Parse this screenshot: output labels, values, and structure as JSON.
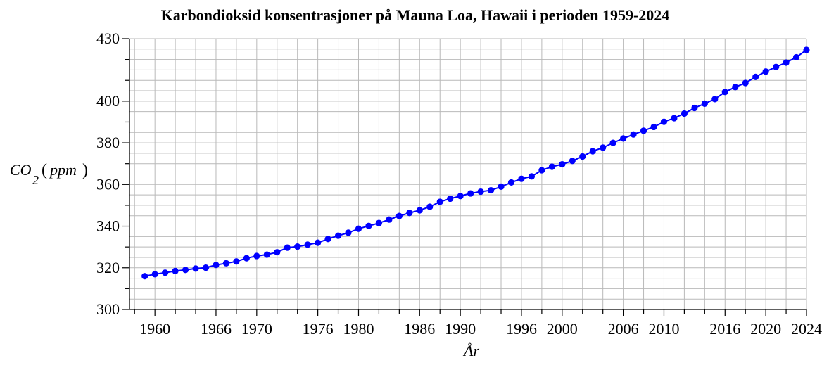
{
  "chart_data": {
    "type": "line",
    "title": "Karbondioksid konsentrasjoner på Mauna Loa, Hawaii i perioden 1959-2024",
    "ylabel": {
      "main": "CO",
      "subscript": "2",
      "paren_open": "(",
      "unit": "ppm",
      "paren_close": ")"
    },
    "xlabel": "År",
    "xlim": [
      1957.5,
      2024
    ],
    "ylim": [
      300,
      430
    ],
    "x_ticks": [
      1960,
      1966,
      1970,
      1976,
      1980,
      1986,
      1990,
      1996,
      2000,
      2006,
      2010,
      2016,
      2020,
      2024
    ],
    "x_tick_labels": [
      "1960",
      "1966",
      "1970",
      "1976",
      "1980",
      "1986",
      "1990",
      "1996",
      "2000",
      "2006",
      "2010",
      "2016",
      "2020",
      "2024"
    ],
    "x_minor_ticks": [
      1958,
      1962,
      1964,
      1968,
      1972,
      1974,
      1978,
      1982,
      1984,
      1988,
      1992,
      1994,
      1998,
      2002,
      2004,
      2008,
      2012,
      2014,
      2018,
      2022
    ],
    "y_ticks": [
      300,
      320,
      340,
      360,
      380,
      400,
      430
    ],
    "y_tick_labels": [
      "300",
      "320",
      "340",
      "360",
      "380",
      "400",
      "430"
    ],
    "y_minor_ticks": [
      310,
      330,
      350,
      370,
      390,
      410,
      420
    ],
    "grid": true,
    "color": "#0000ff",
    "series": [
      {
        "x": [
          1959,
          1960,
          1961,
          1962,
          1963,
          1964,
          1965,
          1966,
          1967,
          1968,
          1969,
          1970,
          1971,
          1972,
          1973,
          1974,
          1975,
          1976,
          1977,
          1978,
          1979,
          1980,
          1981,
          1982,
          1983,
          1984,
          1985,
          1986,
          1987,
          1988,
          1989,
          1990,
          1991,
          1992,
          1993,
          1994,
          1995,
          1996,
          1997,
          1998,
          1999,
          2000,
          2001,
          2002,
          2003,
          2004,
          2005,
          2006,
          2007,
          2008,
          2009,
          2010,
          2011,
          2012,
          2013,
          2014,
          2015,
          2016,
          2017,
          2018,
          2019,
          2020,
          2021,
          2022,
          2023,
          2024
        ],
        "values": [
          315.98,
          316.91,
          317.64,
          318.45,
          318.99,
          319.62,
          320.04,
          321.37,
          322.18,
          323.05,
          324.62,
          325.68,
          326.32,
          327.46,
          329.68,
          330.19,
          331.12,
          332.03,
          333.84,
          335.41,
          336.84,
          338.76,
          340.12,
          341.48,
          343.15,
          344.87,
          346.35,
          347.61,
          349.31,
          351.69,
          353.2,
          354.45,
          355.7,
          356.54,
          357.21,
          358.96,
          360.97,
          362.74,
          363.88,
          366.84,
          368.54,
          369.71,
          371.32,
          373.45,
          375.98,
          377.7,
          379.98,
          382.09,
          384.02,
          385.83,
          387.64,
          390.1,
          391.85,
          394.06,
          396.74,
          398.81,
          401.01,
          404.41,
          406.76,
          408.72,
          411.65,
          414.21,
          416.41,
          418.53,
          421.08,
          424.61
        ]
      }
    ]
  }
}
